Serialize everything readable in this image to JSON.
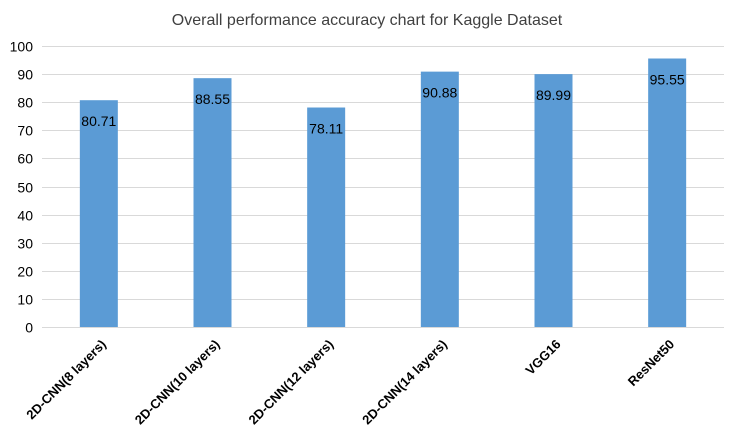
{
  "chart_data": {
    "type": "bar",
    "title": "Overall performance accuracy chart for Kaggle Dataset",
    "xlabel": "",
    "ylabel": "",
    "categories": [
      "2D-CNN(8 layers)",
      "2D-CNN(10 layers)",
      "2D-CNN(12 layers)",
      "2D-CNN(14 layers)",
      "VGG16",
      "ResNet50"
    ],
    "values": [
      80.71,
      88.55,
      78.11,
      90.88,
      89.99,
      95.55
    ],
    "value_labels": [
      "80.71",
      "88.55",
      "78.11",
      "90.88",
      "89.99",
      "95.55"
    ],
    "ylim": [
      0,
      100
    ],
    "yticks": [
      0,
      10,
      20,
      30,
      40,
      50,
      60,
      70,
      80,
      90,
      100
    ],
    "ytick_labels": [
      "0",
      "10",
      "20",
      "30",
      "40",
      "50",
      "60",
      "70",
      "80",
      "90",
      "100"
    ],
    "grid": true,
    "legend": "none",
    "colors": {
      "bar": "#5b9bd5",
      "grid": "#d9d9d9",
      "axis": "#d9d9d9",
      "title": "#404040",
      "text": "#000000"
    }
  }
}
